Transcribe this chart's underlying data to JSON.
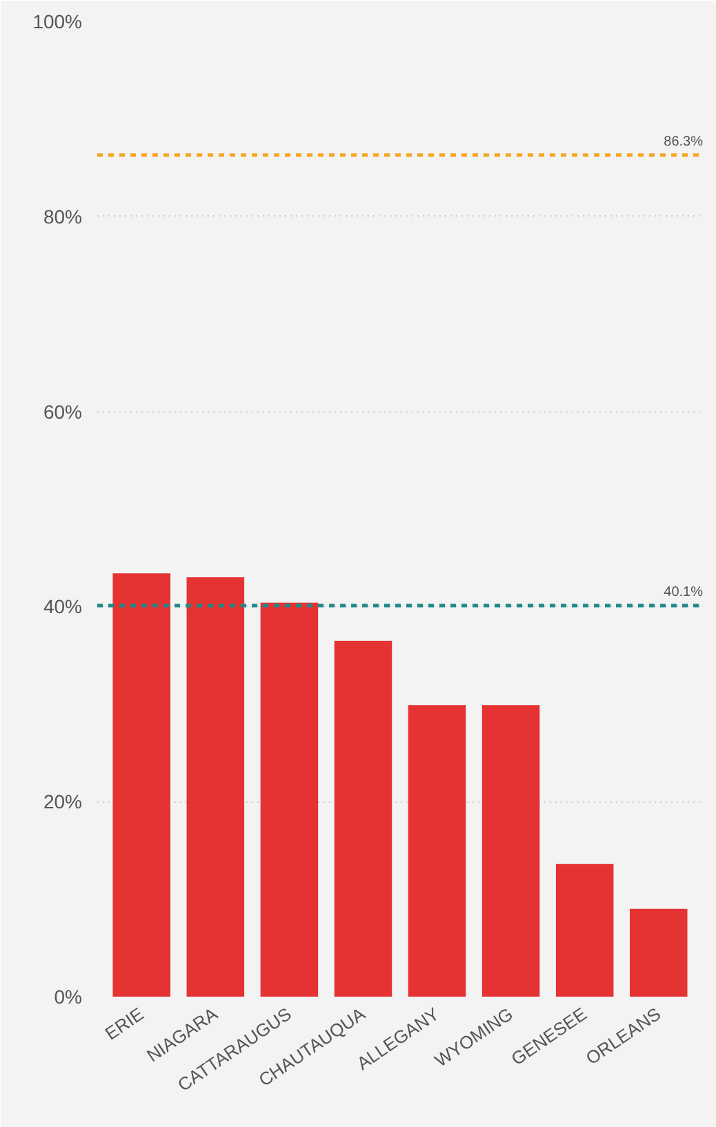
{
  "chart_data": {
    "type": "bar",
    "categories": [
      "ERIE",
      "NIAGARA",
      "CATTARAUGUS",
      "CHAUTAUQUA",
      "ALLEGANY",
      "WYOMING",
      "GENESEE",
      "ORLEANS"
    ],
    "values": [
      43.4,
      43.0,
      40.4,
      36.5,
      29.9,
      29.9,
      13.6,
      9.0
    ],
    "color": "#e53232",
    "ylim": [
      0,
      100
    ],
    "yticks": [
      {
        "value": 0,
        "label": "0%"
      },
      {
        "value": 20,
        "label": "20%"
      },
      {
        "value": 40,
        "label": "40%"
      },
      {
        "value": 60,
        "label": "60%"
      },
      {
        "value": 80,
        "label": "80%"
      },
      {
        "value": 100,
        "label": "100%"
      }
    ],
    "grid": "y",
    "ref_lines": [
      {
        "axis": "y",
        "value": 86.3,
        "label": "86.3%",
        "color": "#f5a623",
        "line_style": "dashed"
      },
      {
        "axis": "y",
        "value": 40.1,
        "label": "40.1%",
        "color": "#1f8a8a",
        "line_style": "dashed"
      }
    ]
  }
}
